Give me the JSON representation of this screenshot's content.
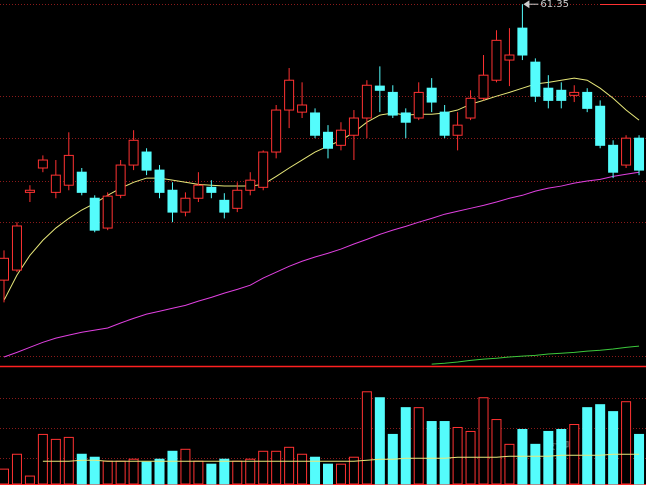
{
  "chart_data": [
    {
      "type": "candlestick",
      "up_color": "#ff3232",
      "down_color": "#54fcfc",
      "ylim": [
        52.7,
        61.45
      ],
      "high_marker": 61.35,
      "open": [
        54.78,
        55.02,
        56.87,
        57.45,
        56.87,
        57.04,
        57.35,
        56.73,
        56.02,
        56.8,
        57.52,
        57.83,
        57.4,
        56.92,
        56.4,
        56.73,
        56.99,
        56.68,
        56.49,
        56.92,
        56.99,
        57.83,
        58.83,
        58.78,
        58.76,
        58.3,
        57.99,
        58.23,
        58.64,
        59.4,
        59.25,
        58.76,
        58.64,
        59.35,
        58.78,
        58.23,
        58.64,
        59.11,
        59.54,
        60.02,
        60.78,
        59.97,
        59.35,
        59.3,
        59.18,
        59.25,
        58.92,
        57.99,
        57.52,
        58.16
      ],
      "high": [
        55.49,
        56.16,
        57.04,
        57.75,
        57.64,
        58.3,
        57.45,
        56.8,
        56.87,
        57.64,
        58.35,
        57.92,
        57.52,
        57.11,
        56.87,
        57.35,
        57.16,
        56.85,
        57.11,
        57.35,
        57.87,
        58.95,
        59.83,
        59.49,
        58.87,
        58.47,
        58.54,
        58.83,
        59.54,
        59.87,
        59.42,
        58.87,
        59.49,
        59.59,
        58.95,
        58.78,
        59.3,
        60.14,
        60.73,
        60.78,
        61.35,
        60.06,
        59.66,
        59.49,
        59.42,
        59.35,
        59.06,
        58.11,
        58.23,
        58.23
      ],
      "low": [
        54.25,
        54.97,
        56.64,
        57.35,
        56.73,
        56.92,
        56.8,
        55.92,
        55.97,
        56.73,
        57.4,
        57.28,
        56.73,
        56.16,
        56.3,
        56.64,
        56.73,
        56.25,
        56.4,
        56.8,
        56.92,
        57.68,
        58.4,
        58.64,
        58.16,
        57.68,
        57.87,
        57.64,
        58.16,
        58.78,
        58.64,
        58.16,
        58.59,
        58.78,
        58.16,
        57.87,
        58.59,
        59.06,
        59.49,
        59.4,
        60.02,
        59.02,
        58.87,
        58.87,
        59.02,
        58.78,
        57.92,
        57.21,
        57.45,
        57.28
      ],
      "close": [
        55.3,
        56.07,
        56.92,
        57.64,
        57.28,
        57.75,
        56.87,
        55.97,
        56.78,
        57.52,
        58.11,
        57.4,
        56.87,
        56.4,
        56.73,
        57.04,
        56.87,
        56.4,
        56.92,
        57.16,
        57.83,
        58.83,
        59.54,
        58.95,
        58.23,
        57.92,
        58.35,
        58.64,
        59.42,
        59.3,
        58.71,
        58.54,
        59.25,
        59.02,
        58.23,
        58.47,
        59.11,
        59.66,
        60.49,
        60.14,
        60.14,
        59.16,
        59.06,
        59.06,
        59.25,
        58.87,
        57.99,
        57.35,
        58.16,
        57.4
      ],
      "ma_lines": [
        {
          "color": "#e8e87a",
          "values": [
            54.3,
            54.9,
            55.37,
            55.73,
            56.02,
            56.25,
            56.45,
            56.61,
            56.8,
            56.97,
            57.11,
            57.21,
            57.21,
            57.16,
            57.11,
            57.06,
            57.04,
            57.02,
            57.02,
            57.02,
            57.06,
            57.25,
            57.45,
            57.64,
            57.83,
            57.97,
            58.11,
            58.3,
            58.54,
            58.71,
            58.76,
            58.71,
            58.73,
            58.73,
            58.76,
            58.83,
            58.97,
            59.06,
            59.16,
            59.25,
            59.35,
            59.45,
            59.49,
            59.54,
            59.59,
            59.54,
            59.35,
            59.11,
            58.83,
            58.59
          ]
        },
        {
          "color": "#e040e0",
          "values": [
            52.95,
            53.06,
            53.18,
            53.3,
            53.4,
            53.47,
            53.54,
            53.59,
            53.64,
            53.76,
            53.87,
            53.97,
            54.04,
            54.11,
            54.18,
            54.28,
            54.37,
            54.47,
            54.56,
            54.66,
            54.83,
            54.97,
            55.11,
            55.23,
            55.33,
            55.42,
            55.52,
            55.64,
            55.75,
            55.87,
            55.97,
            56.06,
            56.16,
            56.25,
            56.35,
            56.42,
            56.49,
            56.56,
            56.64,
            56.73,
            56.8,
            56.9,
            56.97,
            57.02,
            57.09,
            57.14,
            57.18,
            57.25,
            57.3,
            57.35
          ]
        },
        {
          "color": "#3cc83c",
          "values": [
            null,
            null,
            null,
            null,
            null,
            null,
            null,
            null,
            null,
            null,
            null,
            null,
            null,
            null,
            null,
            null,
            null,
            null,
            null,
            null,
            null,
            null,
            null,
            null,
            null,
            null,
            null,
            null,
            null,
            null,
            null,
            null,
            null,
            52.78,
            52.8,
            52.83,
            52.87,
            52.9,
            52.92,
            52.95,
            52.97,
            52.99,
            53.02,
            53.04,
            53.06,
            53.09,
            53.11,
            53.14,
            53.18,
            53.21
          ]
        }
      ]
    },
    {
      "type": "volume",
      "ylim": [
        0,
        117
      ],
      "values": [
        15,
        30,
        8,
        50,
        45,
        47,
        30,
        27,
        23,
        23,
        25,
        22,
        25,
        33,
        35,
        23,
        20,
        25,
        23,
        25,
        33,
        33,
        37,
        30,
        27,
        20,
        20,
        27,
        93,
        87,
        50,
        77,
        77,
        63,
        63,
        57,
        53,
        87,
        65,
        40,
        55,
        40,
        53,
        55,
        60,
        77,
        80,
        73,
        83,
        50
      ],
      "ma": {
        "color": "#e8e87a",
        "values": [
          null,
          null,
          null,
          23,
          23,
          23,
          24,
          24,
          23,
          23,
          23,
          23,
          23,
          23,
          23,
          23,
          23,
          23,
          23,
          23,
          23,
          23,
          23,
          23,
          23,
          23,
          23,
          23,
          24,
          25,
          25,
          26,
          26,
          26,
          26,
          27,
          27,
          27,
          27,
          28,
          28,
          28,
          28,
          29,
          29,
          29,
          29,
          30,
          30,
          30
        ]
      },
      "watermark": "股识吧"
    }
  ]
}
